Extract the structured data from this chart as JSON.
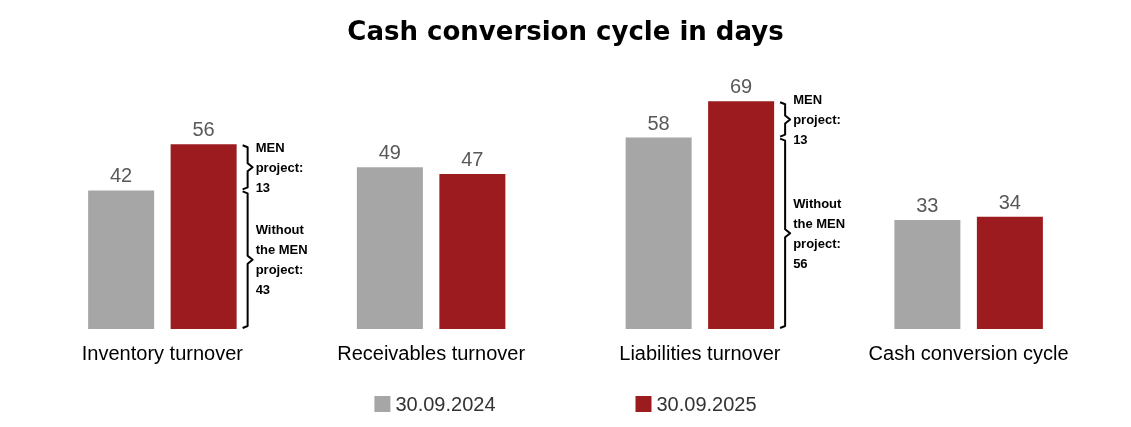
{
  "chart_data": {
    "type": "bar",
    "title": "Cash conversion cycle in days",
    "categories": [
      "Inventory turnover",
      "Receivables turnover",
      "Liabilities turnover",
      "Cash conversion cycle"
    ],
    "series": [
      {
        "name": "30.09.2024",
        "color": "#a6a6a6",
        "values": [
          42,
          49,
          58,
          33
        ]
      },
      {
        "name": "30.09.2025",
        "color": "#9b1b1e",
        "values": [
          56,
          47,
          69,
          34
        ]
      }
    ],
    "data_labels": true,
    "legend": "bottom",
    "annotations": [
      "MEN project: 13",
      "Without the MEN project: 43",
      "MEN project: 13",
      "Without the MEN project: 56"
    ]
  }
}
